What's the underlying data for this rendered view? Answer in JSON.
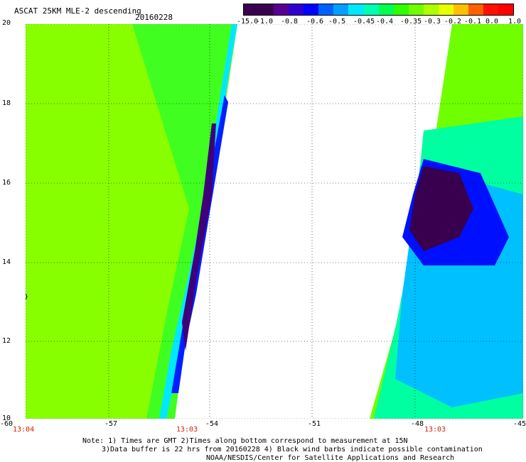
{
  "title": "ASCAT 25KM MLE-2 descending",
  "date": "20160228",
  "colorbar": {
    "labels": [
      "-15.0",
      "-1.0",
      "-0.8",
      "-0.6",
      "-0.5",
      "-0.45",
      "-0.4",
      "-0.35",
      "-0.3",
      "-0.2",
      "-0.1",
      "0.0",
      "1.0"
    ],
    "colors": [
      "#3a0050",
      "#3a0050",
      "#5a0090",
      "#3000d0",
      "#0000ff",
      "#0060ff",
      "#00a0ff",
      "#00e8ff",
      "#00ffb0",
      "#00ff50",
      "#30ff00",
      "#70ff00",
      "#b0ff00",
      "#e8ff00",
      "#ffc000",
      "#ff6000",
      "#ff1000",
      "#ff0000"
    ]
  },
  "map": {
    "lat_labels": [
      "20",
      "18",
      "16",
      "14",
      "12",
      "10"
    ],
    "lon_labels": [
      "-60",
      "-57",
      "-54",
      "-51",
      "-48",
      "-45"
    ],
    "time_labels": [
      "13:04",
      "13:03",
      "13:03"
    ]
  },
  "notes": [
    "Note: 1) Times are GMT 2)Times along bottom correspond to measurement at 15N",
    "3)Data buffer is 22 hrs from 20160228 4) Black wind barbs indicate possible contamination",
    "NOAA/NESDIS/Center for Satellite Applications and Research"
  ]
}
